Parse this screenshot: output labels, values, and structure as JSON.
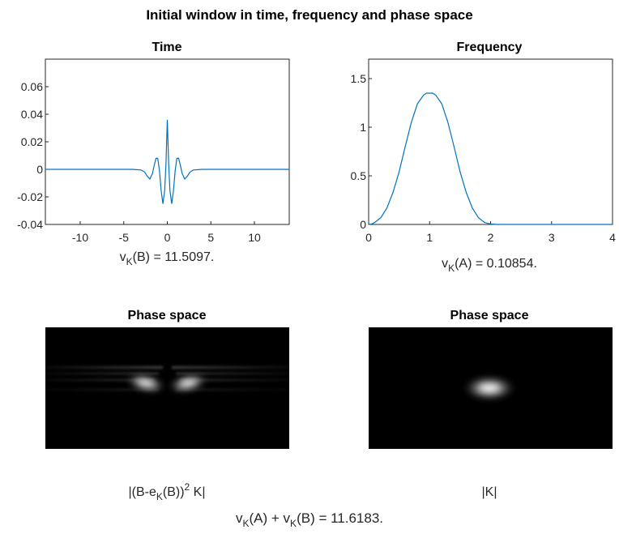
{
  "figure": {
    "title": "Initial window in time, frequency and phase space"
  },
  "chart_data": [
    {
      "type": "line",
      "title": "Time",
      "xlim": [
        -14,
        14
      ],
      "ylim": [
        -0.04,
        0.08
      ],
      "xticks": [
        -10,
        -5,
        0,
        5,
        10
      ],
      "yticks": [
        -0.04,
        -0.02,
        0,
        0.02,
        0.04,
        0.06
      ],
      "xtick_labels": [
        "-10",
        "-5",
        "0",
        "5",
        "10"
      ],
      "ytick_labels": [
        "-0.04",
        "-0.02",
        "0",
        "0.02",
        "0.04",
        "0.06"
      ],
      "grid": false,
      "line_color": "#0072BD",
      "series": [
        {
          "x": [
            -14,
            -4,
            -3,
            -2.6,
            -2.3,
            -2.0,
            -1.7,
            -1.5,
            -1.3,
            -1.1,
            -0.9,
            -0.7,
            -0.5,
            -0.3,
            -0.15,
            0,
            0.15,
            0.3,
            0.5,
            0.7,
            0.9,
            1.1,
            1.3,
            1.5,
            1.7,
            2.0,
            2.3,
            2.6,
            3,
            4,
            14
          ],
          "y": [
            0,
            0,
            -0.0005,
            -0.002,
            -0.005,
            -0.007,
            -0.003,
            0.003,
            0.008,
            0.008,
            -0.001,
            -0.016,
            -0.025,
            -0.015,
            0.005,
            0.036,
            0.005,
            -0.015,
            -0.025,
            -0.016,
            -0.001,
            0.008,
            0.008,
            0.003,
            -0.003,
            -0.007,
            -0.005,
            -0.002,
            -0.0005,
            0,
            0
          ]
        }
      ],
      "caption": {
        "main": "v",
        "sub": "K",
        "rest": "(B) = 11.5097."
      }
    },
    {
      "type": "line",
      "title": "Frequency",
      "xlim": [
        0,
        4
      ],
      "ylim": [
        0,
        1.7
      ],
      "xticks": [
        0,
        1,
        2,
        3,
        4
      ],
      "yticks": [
        0,
        0.5,
        1,
        1.5
      ],
      "xtick_labels": [
        "0",
        "1",
        "2",
        "3",
        "4"
      ],
      "ytick_labels": [
        "0",
        "0.5",
        "1",
        "1.5"
      ],
      "grid": false,
      "line_color": "#0072BD",
      "series": [
        {
          "x": [
            0,
            0.05,
            0.1,
            0.2,
            0.3,
            0.4,
            0.5,
            0.6,
            0.7,
            0.8,
            0.9,
            0.95,
            1.0,
            1.05,
            1.1,
            1.2,
            1.3,
            1.4,
            1.5,
            1.6,
            1.7,
            1.8,
            1.9,
            2.0,
            2.1,
            4
          ],
          "y": [
            0,
            0.005,
            0.02,
            0.07,
            0.17,
            0.33,
            0.54,
            0.8,
            1.05,
            1.24,
            1.33,
            1.35,
            1.35,
            1.35,
            1.33,
            1.24,
            1.05,
            0.8,
            0.54,
            0.33,
            0.17,
            0.07,
            0.02,
            0.005,
            0,
            0
          ]
        }
      ],
      "caption": {
        "main": "v",
        "sub": "K",
        "rest": "(A) = 0.10854."
      }
    }
  ],
  "phase_plots": [
    {
      "title": "Phase space",
      "caption": {
        "pre": "|(B-e",
        "sub": "K",
        "mid": "(B))",
        "sup": "2",
        "post": " K|"
      }
    },
    {
      "title": "Phase space",
      "caption": {
        "text": "|K|"
      }
    }
  ],
  "footer": {
    "parts": [
      "v",
      "K",
      "(A) + v",
      "K",
      "(B) = 11.6183."
    ]
  }
}
